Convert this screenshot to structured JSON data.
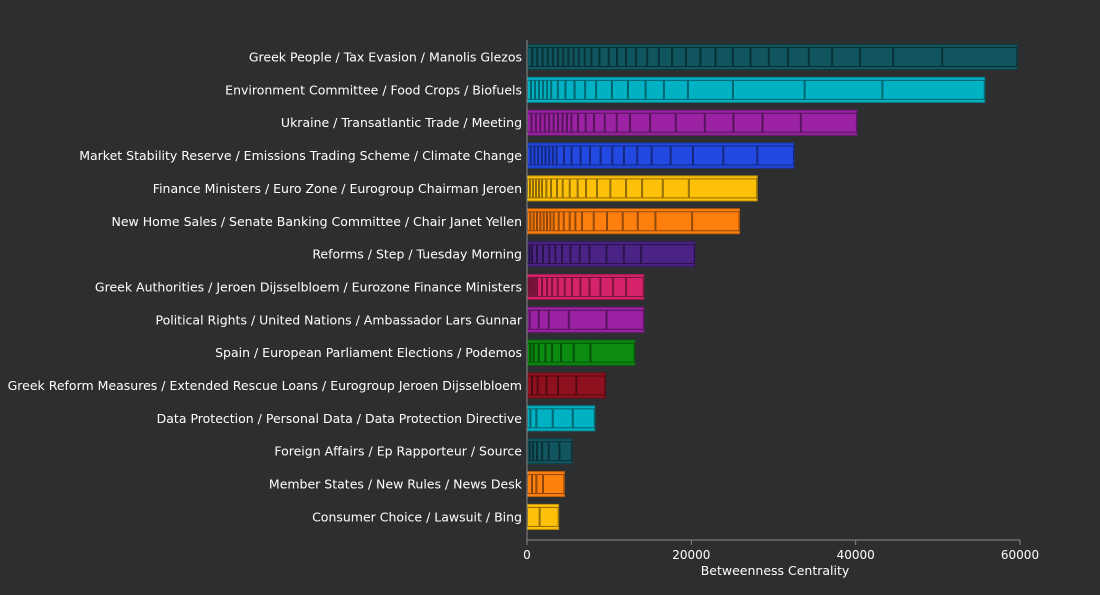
{
  "chart_data": {
    "type": "bar",
    "orientation": "horizontal",
    "stacked": true,
    "xlabel": "Betweenness Centrality",
    "ylabel": "",
    "xlim": [
      0,
      60000
    ],
    "xticks": [
      0,
      20000,
      40000,
      60000
    ],
    "xtick_labels": [
      "0",
      "20000",
      "40000",
      "60000"
    ],
    "grid": false,
    "legend": "none",
    "background": "#2d2e30",
    "categories": [
      "Greek People / Tax Evasion / Manolis Glezos",
      "Environment Committee / Food Crops / Biofuels",
      "Ukraine / Transatlantic Trade / Meeting",
      "Market Stability Reserve / Emissions Trading Scheme / Climate Change",
      "Finance Ministers / Euro Zone / Eurogroup Chairman Jeroen",
      "New Home Sales / Senate Banking Committee / Chair Janet Yellen",
      "Reforms / Step / Tuesday Morning",
      "Greek Authorities / Jeroen Dijsselbloem / Eurozone Finance Ministers",
      "Political Rights / United Nations / Ambassador Lars Gunnar",
      "Spain / European Parliament Elections / Podemos",
      "Greek Reform Measures / Extended Rescue Loans / Eurogroup Jeroen Dijsselbloem",
      "Data Protection / Personal Data / Data Protection Directive",
      "Foreign Affairs / Ep Rapporteur / Source",
      "Member States / New Rules / News Desk",
      "Consumer Choice / Lawsuit / Bing"
    ],
    "colors": [
      "#11565f",
      "#00b2c4",
      "#9b22a3",
      "#2349e3",
      "#ffc107",
      "#ff7f0e",
      "#4a2384",
      "#d6226a",
      "#9b22a3",
      "#0c8c10",
      "#8f111f",
      "#00b2c4",
      "#11565f",
      "#ff7f0e",
      "#ffc107"
    ],
    "totals": [
      59600,
      55700,
      40000,
      32500,
      28000,
      25800,
      20300,
      14100,
      14100,
      13000,
      9500,
      8200,
      5400,
      4500,
      3800
    ],
    "segments": [
      [
        630,
        630,
        630,
        630,
        630,
        630,
        630,
        630,
        630,
        630,
        730,
        810,
        970,
        1140,
        1010,
        1100,
        1220,
        1340,
        1420,
        1620,
        1700,
        1750,
        1830,
        2110,
        2150,
        2230,
        2350,
        2520,
        2840,
        3370,
        4060,
        5970,
        9130
      ],
      [
        490,
        490,
        490,
        490,
        490,
        490,
        810,
        930,
        1100,
        1300,
        1340,
        1910,
        1950,
        2150,
        2230,
        2920,
        5480,
        8730,
        9460,
        12460
      ],
      [
        540,
        540,
        540,
        540,
        540,
        540,
        540,
        540,
        540,
        540,
        810,
        930,
        1020,
        1300,
        1460,
        1620,
        2440,
        3130,
        3530,
        3490,
        3530,
        4670,
        6820
      ],
      [
        450,
        450,
        450,
        450,
        450,
        450,
        450,
        450,
        890,
        930,
        1100,
        1140,
        1300,
        1420,
        1420,
        1620,
        1750,
        2310,
        2720,
        3690,
        4140,
        4470
      ],
      [
        365,
        365,
        365,
        365,
        365,
        530,
        570,
        730,
        690,
        850,
        970,
        1020,
        1340,
        1620,
        1910,
        1950,
        2520,
        3170,
        8320
      ],
      [
        406,
        406,
        406,
        406,
        406,
        406,
        406,
        406,
        610,
        610,
        730,
        690,
        810,
        1420,
        1620,
        1910,
        1830,
        2150,
        4470,
        5770
      ],
      [
        305,
        305,
        610,
        730,
        770,
        730,
        810,
        1020,
        1140,
        1180,
        2070,
        2110,
        2110,
        6540
      ],
      [
        244,
        244,
        244,
        244,
        244,
        610,
        610,
        610,
        690,
        850,
        890,
        1020,
        1100,
        1340,
        1540,
        1580,
        2150
      ],
      [
        325,
        1100,
        1220,
        2440,
        4590,
        4550
      ],
      [
        410,
        410,
        610,
        810,
        810,
        1100,
        1540,
        2030,
        5400
      ],
      [
        610,
        690,
        1060,
        1420,
        2230,
        3530
      ],
      [
        410,
        730,
        1990,
        2440,
        2680
      ],
      [
        325,
        410,
        490,
        610,
        810,
        1300,
        1540
      ],
      [
        610,
        530,
        810,
        2600
      ],
      [
        1540,
        2310
      ]
    ]
  }
}
